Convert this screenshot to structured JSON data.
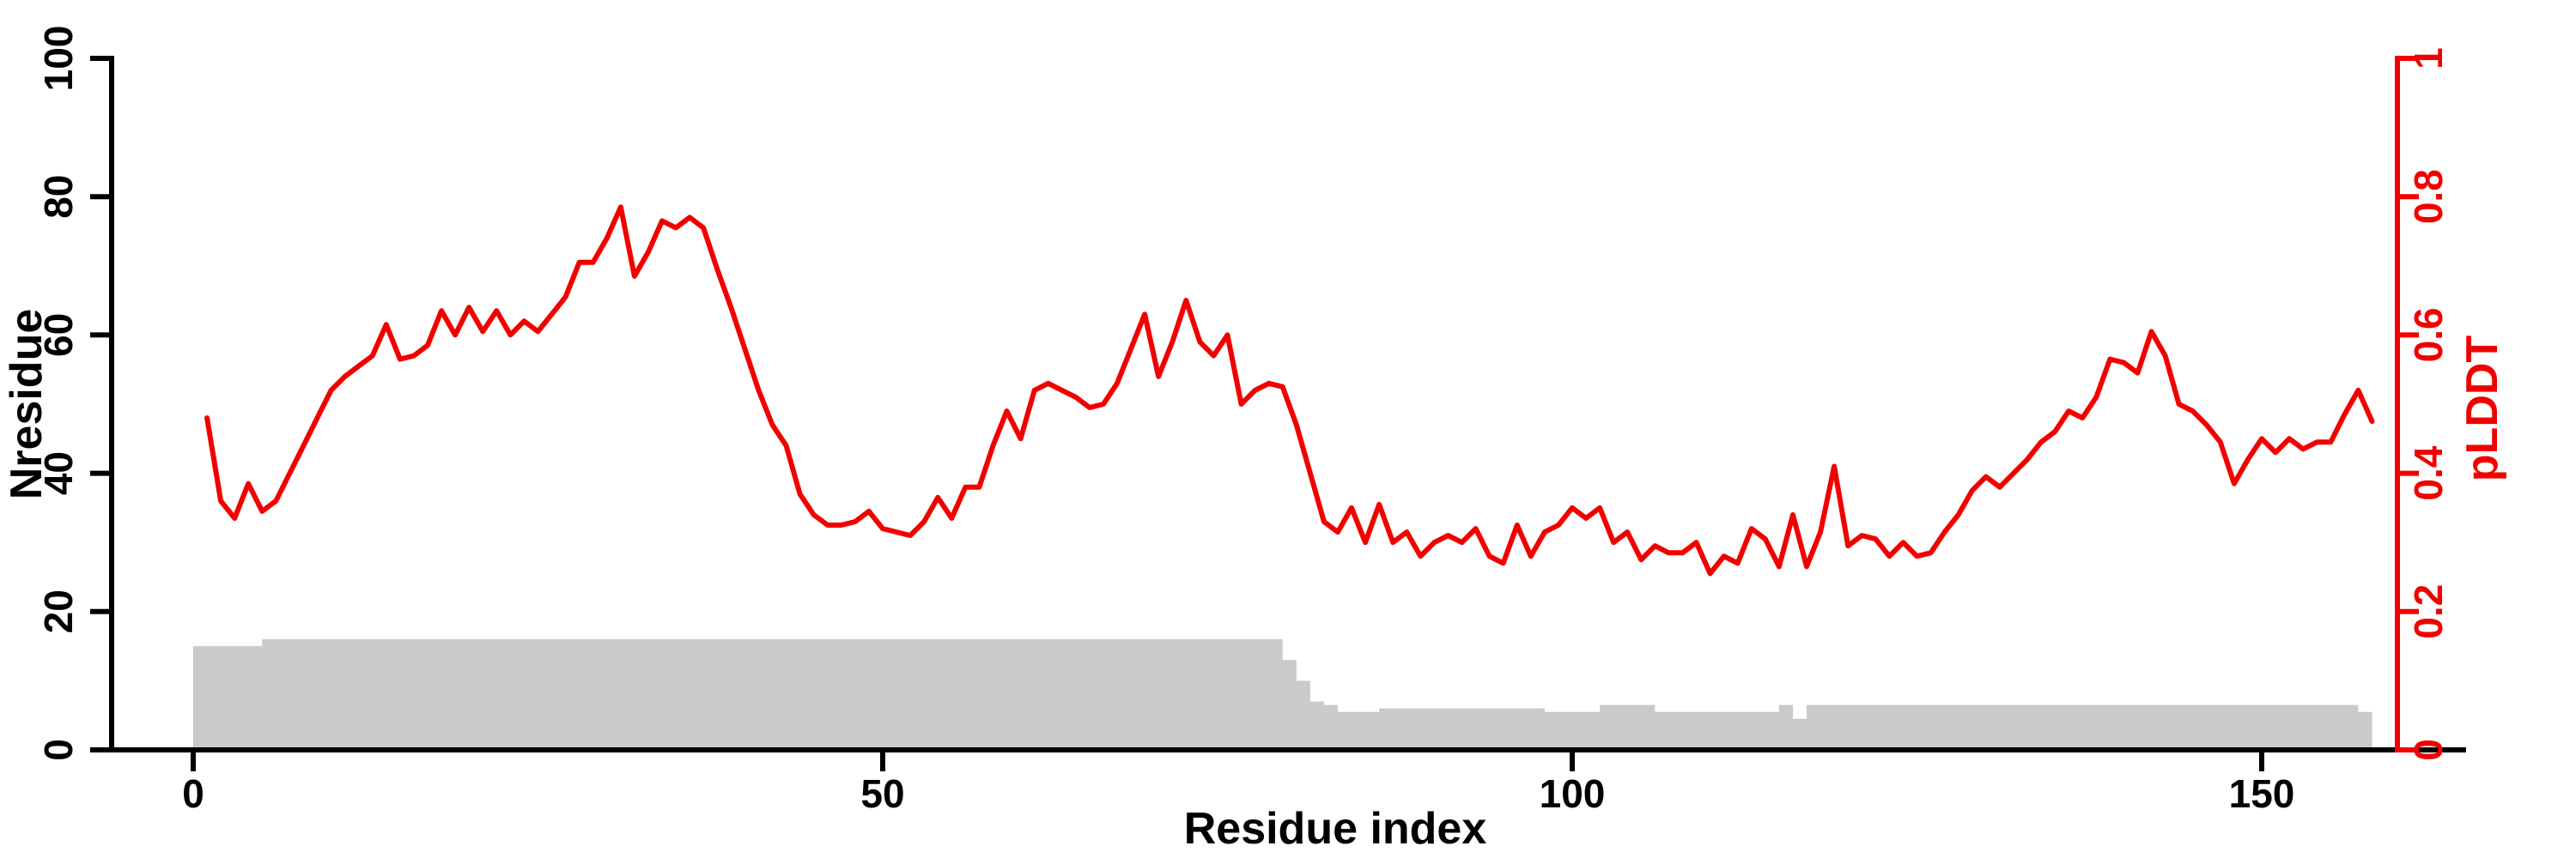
{
  "chart_data": {
    "type": "line",
    "subtype": "dual-axis line over barplot",
    "title": "",
    "xlabel": "Residue index",
    "ylabel_left": "Nresidue",
    "ylabel_right": "pLDDT",
    "x_start": 1,
    "x_end": 158,
    "n_points": 158,
    "axes": {
      "x": {
        "ticks": [
          0,
          50,
          100,
          150
        ],
        "range": [
          0,
          158
        ],
        "label": "Residue index"
      },
      "left": {
        "ticks": [
          0,
          20,
          40,
          60,
          80,
          100
        ],
        "range": [
          0,
          100
        ],
        "label": "Nresidue",
        "color": "#000000"
      },
      "right": {
        "ticks": [
          0,
          0.2,
          0.4,
          0.6,
          0.8,
          1
        ],
        "tick_labels": [
          "0",
          "0.2",
          "0.4",
          "0.6",
          "0.8",
          "1"
        ],
        "range": [
          0,
          1
        ],
        "label": "pLDDT",
        "color": "#f20000"
      }
    },
    "grid": false,
    "legend": "none",
    "colors": {
      "plddt_line": "#f20000",
      "nresidue_bars": "#cacaca",
      "axis_black": "#000000",
      "background": "#ffffff"
    },
    "series": [
      {
        "name": "Nresidue",
        "type": "bar",
        "axis": "left",
        "color": "#cacaca",
        "values": [
          15,
          15,
          15,
          15,
          15,
          16,
          16,
          16,
          16,
          16,
          16,
          16,
          16,
          16,
          16,
          16,
          16,
          16,
          16,
          16,
          16,
          16,
          16,
          16,
          16,
          16,
          16,
          16,
          16,
          16,
          16,
          16,
          16,
          16,
          16,
          16,
          16,
          16,
          16,
          16,
          16,
          16,
          16,
          16,
          16,
          16,
          16,
          16,
          16,
          16,
          16,
          16,
          16,
          16,
          16,
          16,
          16,
          16,
          16,
          16,
          16,
          16,
          16,
          16,
          16,
          16,
          16,
          16,
          16,
          16,
          16,
          16,
          16,
          16,
          16,
          16,
          16,
          16,
          16,
          13,
          10,
          7,
          6.5,
          5.5,
          5.5,
          5.5,
          6,
          6,
          6,
          6,
          6,
          6,
          6,
          6,
          6,
          6,
          6,
          6,
          5.5,
          5.5,
          5.5,
          5.5,
          6.5,
          6.5,
          6.5,
          6.5,
          5.5,
          5.5,
          5.5,
          5.5,
          5.5,
          5.5,
          5.5,
          5.5,
          5.5,
          6.5,
          4.5,
          6.5,
          6.5,
          6.5,
          6.5,
          6.5,
          6.5,
          6.5,
          6.5,
          6.5,
          6.5,
          6.5,
          6.5,
          6.5,
          6.5,
          6.5,
          6.5,
          6.5,
          6.5,
          6.5,
          6.5,
          6.5,
          6.5,
          6.5,
          6.5,
          6.5,
          6.5,
          6.5,
          6.5,
          6.5,
          6.5,
          6.5,
          6.5,
          6.5,
          6.5,
          6.5,
          6.5,
          6.5,
          6.5,
          6.5,
          6.5,
          5.5
        ]
      },
      {
        "name": "pLDDT",
        "type": "line",
        "axis": "right",
        "color": "#f20000",
        "values": [
          0.48,
          0.36,
          0.335,
          0.385,
          0.345,
          0.36,
          0.4,
          0.44,
          0.48,
          0.52,
          0.54,
          0.555,
          0.57,
          0.615,
          0.565,
          0.57,
          0.585,
          0.635,
          0.6,
          0.64,
          0.605,
          0.635,
          0.6,
          0.62,
          0.605,
          0.63,
          0.655,
          0.705,
          0.705,
          0.74,
          0.785,
          0.685,
          0.72,
          0.765,
          0.755,
          0.77,
          0.755,
          0.695,
          0.64,
          0.58,
          0.52,
          0.47,
          0.44,
          0.37,
          0.34,
          0.325,
          0.325,
          0.33,
          0.345,
          0.32,
          0.315,
          0.31,
          0.33,
          0.365,
          0.335,
          0.38,
          0.38,
          0.44,
          0.49,
          0.45,
          0.52,
          0.53,
          0.52,
          0.51,
          0.495,
          0.5,
          0.53,
          0.58,
          0.63,
          0.54,
          0.59,
          0.65,
          0.59,
          0.57,
          0.6,
          0.5,
          0.52,
          0.53,
          0.525,
          0.47,
          0.4,
          0.33,
          0.315,
          0.35,
          0.3,
          0.355,
          0.3,
          0.315,
          0.28,
          0.3,
          0.31,
          0.3,
          0.32,
          0.28,
          0.27,
          0.325,
          0.28,
          0.315,
          0.325,
          0.35,
          0.335,
          0.35,
          0.3,
          0.315,
          0.275,
          0.295,
          0.285,
          0.285,
          0.3,
          0.255,
          0.28,
          0.27,
          0.32,
          0.305,
          0.265,
          0.34,
          0.265,
          0.315,
          0.41,
          0.295,
          0.31,
          0.305,
          0.28,
          0.3,
          0.28,
          0.285,
          0.315,
          0.34,
          0.375,
          0.395,
          0.38,
          0.4,
          0.42,
          0.445,
          0.46,
          0.49,
          0.48,
          0.51,
          0.565,
          0.56,
          0.545,
          0.605,
          0.57,
          0.5,
          0.49,
          0.47,
          0.445,
          0.385,
          0.42,
          0.45,
          0.43,
          0.45,
          0.435,
          0.445,
          0.445,
          0.485,
          0.52,
          0.475
        ]
      }
    ]
  }
}
